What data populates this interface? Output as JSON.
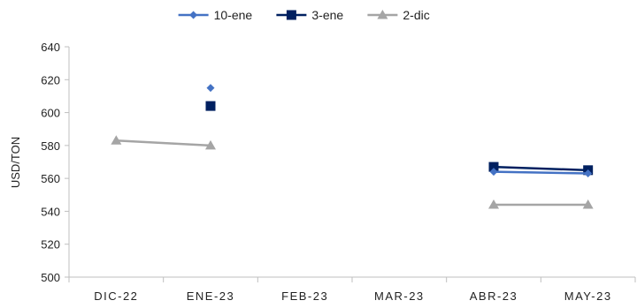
{
  "chart_data": {
    "type": "line",
    "categories": [
      "DIC-22",
      "ENE-23",
      "FEB-23",
      "MAR-23",
      "ABR-23",
      "MAY-23"
    ],
    "ylabel": "USD/TON",
    "xlabel": "",
    "ylim": [
      500,
      640
    ],
    "yticks": [
      500,
      520,
      540,
      560,
      580,
      600,
      620,
      640
    ],
    "legend_position": "top-center",
    "grid": false,
    "series": [
      {
        "name": "10-ene",
        "color": "#4472C4",
        "marker": "diamond",
        "values": [
          null,
          615,
          null,
          null,
          564,
          563
        ]
      },
      {
        "name": "3-ene",
        "color": "#002060",
        "marker": "square",
        "values": [
          null,
          604,
          null,
          null,
          567,
          565
        ]
      },
      {
        "name": "2-dic",
        "color": "#A5A5A5",
        "marker": "triangle",
        "values": [
          583,
          580,
          null,
          null,
          544,
          544
        ]
      }
    ]
  }
}
